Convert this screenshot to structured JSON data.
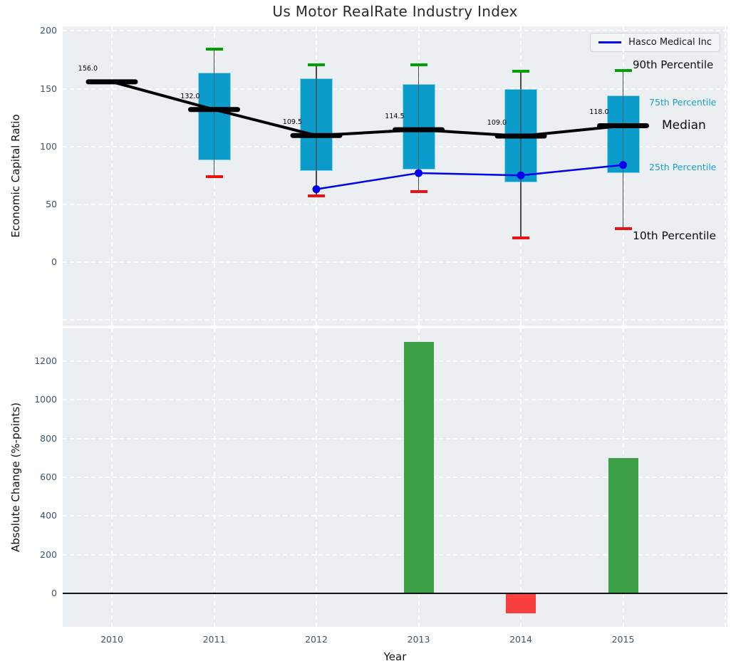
{
  "colors": {
    "box_fill": "#0c9ccb",
    "whisker": "#4a4a4a",
    "cap_high": "#00a000",
    "cap_low": "#ee1111",
    "median_line": "#000000",
    "company_line": "#0000ee",
    "bar_positive": "#3da047",
    "bar_negative": "#f94040",
    "axes_background": "#eceff1",
    "grid": "#ffffff",
    "tick_label": "#3e5467",
    "percentile_label_accent": "#1a9fca"
  },
  "chart_data": [
    {
      "type": "box",
      "title": "Us Motor RealRate Industry Index",
      "ylabel": "Economic Capital Ratio",
      "xlabel": "Year",
      "categories": [
        "2010",
        "2011",
        "2012",
        "2013",
        "2014",
        "2015"
      ],
      "ylim": [
        -55,
        204
      ],
      "yticks": [
        200,
        150,
        100,
        50,
        0
      ],
      "grid": true,
      "legend_position": "upper right",
      "median": [
        156.0,
        132.0,
        109.5,
        114.5,
        109.0,
        118.0
      ],
      "median_labels": [
        "156.0",
        "132.0",
        "109.5",
        "114.5",
        "109.0",
        "118.0"
      ],
      "p90": [
        null,
        184,
        171,
        171,
        165,
        166
      ],
      "p75": [
        null,
        164,
        159,
        154,
        150,
        144
      ],
      "p25": [
        null,
        88,
        79,
        80,
        69,
        77
      ],
      "p10": [
        null,
        74,
        57,
        61,
        21,
        29
      ],
      "series": [
        {
          "name": "Hasco Medical Inc",
          "values": [
            null,
            null,
            63,
            77,
            75,
            84
          ]
        }
      ],
      "annotations": [
        "90th Percentile",
        "75th Percentile",
        "Median",
        "25th Percentile",
        "10th Percentile"
      ]
    },
    {
      "type": "bar",
      "ylabel": "Absolute Change (%-points)",
      "categories": [
        "2010",
        "2011",
        "2012",
        "2013",
        "2014",
        "2015"
      ],
      "values": [
        0,
        0,
        0,
        1300,
        -100,
        700
      ],
      "ylim": [
        -172,
        1369
      ],
      "yticks": [
        1200,
        1000,
        800,
        600,
        400,
        200,
        0
      ],
      "grid": true
    }
  ]
}
